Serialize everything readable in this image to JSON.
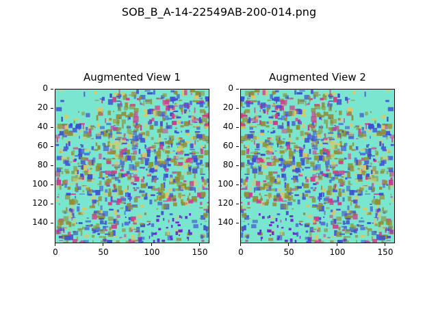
{
  "figure": {
    "title": "SOB_B_A-14-22549AB-200-014.png",
    "panels": [
      {
        "title": "Augmented View 1",
        "yticks": [
          "0",
          "20",
          "40",
          "60",
          "80",
          "100",
          "120",
          "140"
        ],
        "xticks": [
          "0",
          "50",
          "100",
          "150"
        ]
      },
      {
        "title": "Augmented View 2",
        "yticks": [
          "0",
          "20",
          "40",
          "60",
          "80",
          "100",
          "120",
          "140"
        ],
        "xticks": [
          "0",
          "50",
          "100",
          "150"
        ]
      }
    ]
  },
  "colors": {
    "background": "#7be6cf",
    "tissue_blue": "#3f4fcf",
    "olive": "#8f8f3a",
    "yellow": "#d8c86a",
    "magenta": "#d03a8a",
    "purple": "#6a2fd0"
  }
}
